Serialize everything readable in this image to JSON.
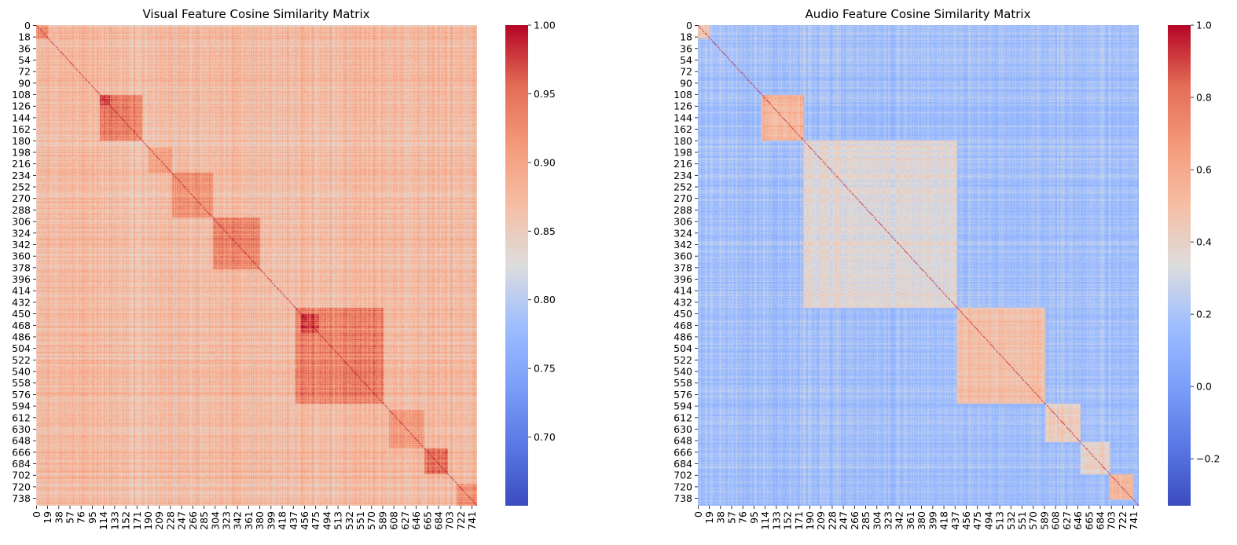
{
  "chart_data": [
    {
      "type": "heatmap",
      "title": "Visual Feature Cosine Similarity Matrix",
      "xlabel": "",
      "ylabel": "",
      "matrix_size": 750,
      "colormap": "coolwarm",
      "value_range": [
        0.65,
        1.0
      ],
      "background_value": 0.87,
      "x_tick_labels": [
        "0",
        "19",
        "38",
        "57",
        "76",
        "95",
        "114",
        "133",
        "152",
        "171",
        "190",
        "209",
        "228",
        "247",
        "266",
        "285",
        "304",
        "323",
        "342",
        "361",
        "380",
        "399",
        "418",
        "437",
        "456",
        "475",
        "494",
        "513",
        "532",
        "551",
        "570",
        "589",
        "608",
        "627",
        "646",
        "665",
        "684",
        "703",
        "722",
        "741"
      ],
      "y_tick_labels": [
        "0",
        "18",
        "36",
        "54",
        "72",
        "90",
        "108",
        "126",
        "144",
        "162",
        "180",
        "198",
        "216",
        "234",
        "252",
        "270",
        "288",
        "306",
        "324",
        "342",
        "360",
        "378",
        "396",
        "414",
        "432",
        "450",
        "468",
        "486",
        "504",
        "522",
        "540",
        "558",
        "576",
        "594",
        "612",
        "630",
        "648",
        "666",
        "684",
        "702",
        "720",
        "738"
      ],
      "blocks": [
        {
          "start": 0,
          "end": 20,
          "value": 0.92
        },
        {
          "start": 108,
          "end": 180,
          "value": 0.94
        },
        {
          "start": 108,
          "end": 125,
          "value": 0.97
        },
        {
          "start": 190,
          "end": 230,
          "value": 0.9
        },
        {
          "start": 230,
          "end": 300,
          "value": 0.92
        },
        {
          "start": 300,
          "end": 380,
          "value": 0.93
        },
        {
          "start": 440,
          "end": 590,
          "value": 0.93
        },
        {
          "start": 450,
          "end": 480,
          "value": 0.97
        },
        {
          "start": 600,
          "end": 660,
          "value": 0.91
        },
        {
          "start": 660,
          "end": 700,
          "value": 0.94
        },
        {
          "start": 715,
          "end": 750,
          "value": 0.92
        }
      ],
      "colorbar": {
        "ticks": [
          0.7,
          0.75,
          0.8,
          0.85,
          0.9,
          0.95,
          1.0
        ],
        "tick_labels": [
          "0.70",
          "0.75",
          "0.80",
          "0.85",
          "0.90",
          "0.95",
          "1.00"
        ]
      }
    },
    {
      "type": "heatmap",
      "title": "Audio Feature Cosine Similarity Matrix",
      "xlabel": "",
      "ylabel": "",
      "matrix_size": 750,
      "colormap": "coolwarm",
      "value_range": [
        -0.33,
        1.0
      ],
      "background_value": 0.18,
      "x_tick_labels": [
        "0",
        "19",
        "38",
        "57",
        "76",
        "95",
        "114",
        "133",
        "152",
        "171",
        "190",
        "209",
        "228",
        "247",
        "266",
        "285",
        "304",
        "323",
        "342",
        "361",
        "380",
        "399",
        "418",
        "437",
        "456",
        "475",
        "494",
        "513",
        "532",
        "551",
        "570",
        "589",
        "608",
        "627",
        "646",
        "665",
        "684",
        "703",
        "722",
        "741"
      ],
      "y_tick_labels": [
        "0",
        "18",
        "36",
        "54",
        "72",
        "90",
        "108",
        "126",
        "144",
        "162",
        "180",
        "198",
        "216",
        "234",
        "252",
        "270",
        "288",
        "306",
        "324",
        "342",
        "360",
        "378",
        "396",
        "414",
        "432",
        "450",
        "468",
        "486",
        "504",
        "522",
        "540",
        "558",
        "576",
        "594",
        "612",
        "630",
        "648",
        "666",
        "684",
        "702",
        "720",
        "738"
      ],
      "blocks": [
        {
          "start": 0,
          "end": 20,
          "value": 0.45
        },
        {
          "start": 108,
          "end": 180,
          "value": 0.55
        },
        {
          "start": 180,
          "end": 440,
          "value": 0.35
        },
        {
          "start": 440,
          "end": 590,
          "value": 0.5
        },
        {
          "start": 590,
          "end": 650,
          "value": 0.42
        },
        {
          "start": 650,
          "end": 700,
          "value": 0.4
        },
        {
          "start": 700,
          "end": 740,
          "value": 0.55
        }
      ],
      "colorbar": {
        "ticks": [
          -0.2,
          0.0,
          0.2,
          0.4,
          0.6,
          0.8,
          1.0
        ],
        "tick_labels": [
          "−0.2",
          "0.0",
          "0.2",
          "0.4",
          "0.6",
          "0.8",
          "1.0"
        ]
      }
    }
  ]
}
